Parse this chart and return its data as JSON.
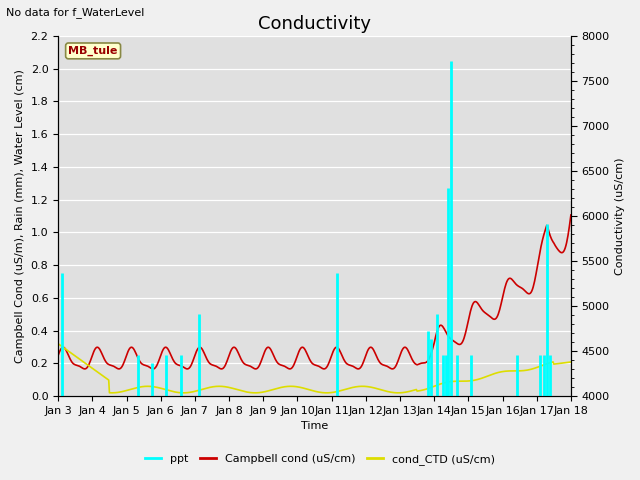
{
  "title": "Conductivity",
  "top_left_text": "No data for f_WaterLevel",
  "site_label": "MB_tule",
  "ylabel_left": "Campbell Cond (uS/m), Rain (mm), Water Level (cm)",
  "ylabel_right": "Conductivity (uS/cm)",
  "xlabel": "Time",
  "ylim_left": [
    0.0,
    2.2
  ],
  "ylim_right": [
    4000,
    8000
  ],
  "yticks_left": [
    0.0,
    0.2,
    0.4,
    0.6,
    0.8,
    1.0,
    1.2,
    1.4,
    1.6,
    1.8,
    2.0,
    2.2
  ],
  "yticks_right": [
    4000,
    4500,
    5000,
    5500,
    6000,
    6500,
    7000,
    7500,
    8000
  ],
  "fig_bg": "#f0f0f0",
  "plot_bg": "#e0e0e0",
  "legend_entries": [
    "ppt",
    "Campbell cond (uS/cm)",
    "cond_CTD (uS/cm)"
  ],
  "ppt_color": "#00ffff",
  "campbell_color": "#cc0000",
  "ctd_color": "#dddd00",
  "xtick_labels": [
    "Jan 3",
    "Jan 4",
    "Jan 5",
    "Jan 6",
    "Jan 7",
    "Jan 8",
    "Jan 9",
    "Jan 10",
    "Jan 11",
    "Jan 12",
    "Jan 13",
    "Jan 14",
    "Jan 15",
    "Jan 16",
    "Jan 17",
    "Jan 18"
  ],
  "title_fontsize": 13,
  "label_fontsize": 8,
  "tick_fontsize": 8
}
